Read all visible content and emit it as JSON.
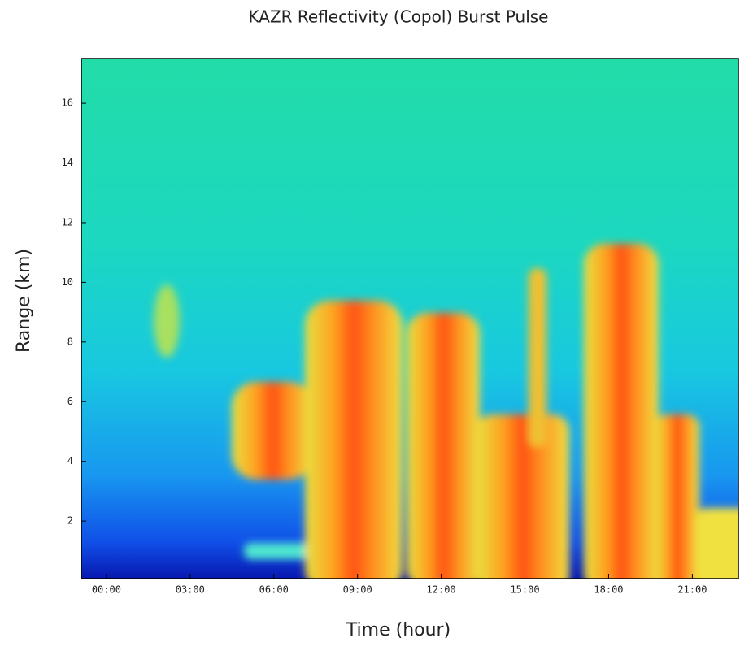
{
  "chart_data": {
    "type": "heatmap",
    "title": "KAZR Reflectivity (Copol) Burst Pulse",
    "xlabel": "Time (hour)",
    "ylabel": "Range (km)",
    "xlim": [
      -0.9,
      22.65
    ],
    "xticks": [
      {
        "value": 0,
        "label": "00:00"
      },
      {
        "value": 3,
        "label": "03:00"
      },
      {
        "value": 6,
        "label": "06:00"
      },
      {
        "value": 9,
        "label": "09:00"
      },
      {
        "value": 12,
        "label": "12:00"
      },
      {
        "value": 15,
        "label": "15:00"
      },
      {
        "value": 18,
        "label": "18:00"
      },
      {
        "value": 21,
        "label": "21:00"
      }
    ],
    "ylim": [
      0.07,
      17.5
    ],
    "yticks": [
      2,
      4,
      6,
      8,
      10,
      12,
      14,
      16
    ]
  }
}
